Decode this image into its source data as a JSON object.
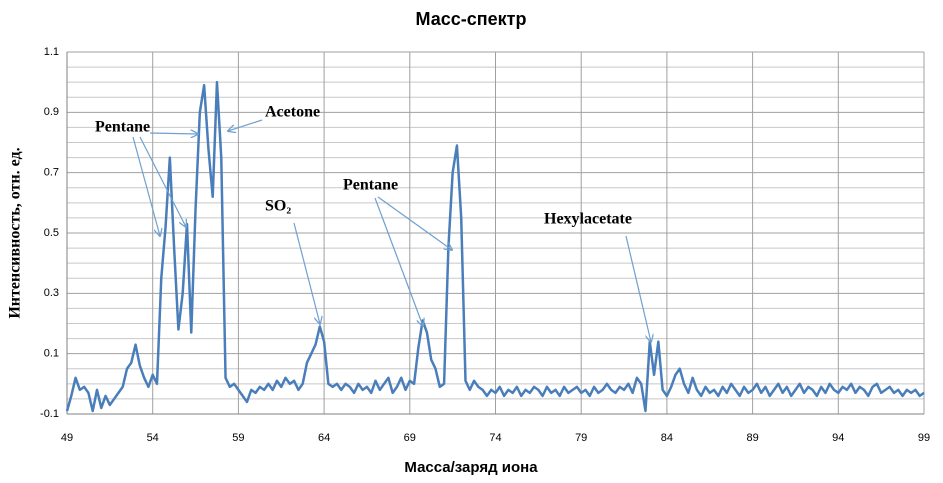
{
  "chart_data": {
    "type": "line",
    "title": "Масс-спектр",
    "x_label": "Масса/заряд иона",
    "y_label": "Интенсивность, отн. ед.",
    "color": "#4a7ebb",
    "grid": true,
    "xlim": [
      49,
      99
    ],
    "xticks": [
      49,
      54,
      59,
      64,
      69,
      74,
      79,
      84,
      89,
      94,
      99
    ],
    "ylim": [
      -0.1,
      1.1
    ],
    "yticks": [
      -0.1,
      0.1,
      0.3,
      0.5,
      0.7,
      0.9,
      1.1
    ],
    "y_minor_ticks": [
      -0.05,
      0,
      0.05,
      0.15,
      0.2,
      0.25,
      0.35,
      0.4,
      0.45,
      0.55,
      0.6,
      0.65,
      0.75,
      0.8,
      0.85,
      0.95,
      1,
      1.05
    ],
    "annotations": [
      {
        "text": "Pentane"
      },
      {
        "text": "Acetone"
      },
      {
        "text": "SO₂"
      },
      {
        "text": "Pentane"
      },
      {
        "text": "Hexylacetate"
      }
    ],
    "x": [
      49,
      49.25,
      49.5,
      49.75,
      50,
      50.25,
      50.5,
      50.75,
      51,
      51.25,
      51.5,
      51.75,
      52,
      52.25,
      52.5,
      52.75,
      53,
      53.25,
      53.5,
      53.75,
      54,
      54.25,
      54.5,
      54.75,
      55,
      55.25,
      55.5,
      55.75,
      56,
      56.25,
      56.5,
      56.75,
      57,
      57.25,
      57.5,
      57.75,
      58,
      58.25,
      58.5,
      58.75,
      59,
      59.25,
      59.5,
      59.75,
      60,
      60.25,
      60.5,
      60.75,
      61,
      61.25,
      61.5,
      61.75,
      62,
      62.25,
      62.5,
      62.75,
      63,
      63.25,
      63.5,
      63.75,
      64,
      64.25,
      64.5,
      64.75,
      65,
      65.25,
      65.5,
      65.75,
      66,
      66.25,
      66.5,
      66.75,
      67,
      67.25,
      67.5,
      67.75,
      68,
      68.25,
      68.5,
      68.75,
      69,
      69.25,
      69.5,
      69.75,
      70,
      70.25,
      70.5,
      70.75,
      71,
      71.25,
      71.5,
      71.75,
      72,
      72.25,
      72.5,
      72.75,
      73,
      73.25,
      73.5,
      73.75,
      74,
      74.25,
      74.5,
      74.75,
      75,
      75.25,
      75.5,
      75.75,
      76,
      76.25,
      76.5,
      76.75,
      77,
      77.25,
      77.5,
      77.75,
      78,
      78.25,
      78.5,
      78.75,
      79,
      79.25,
      79.5,
      79.75,
      80,
      80.25,
      80.5,
      80.75,
      81,
      81.25,
      81.5,
      81.75,
      82,
      82.25,
      82.5,
      82.75,
      83,
      83.25,
      83.5,
      83.75,
      84,
      84.25,
      84.5,
      84.75,
      85,
      85.25,
      85.5,
      85.75,
      86,
      86.25,
      86.5,
      86.75,
      87,
      87.25,
      87.5,
      87.75,
      88,
      88.25,
      88.5,
      88.75,
      89,
      89.25,
      89.5,
      89.75,
      90,
      90.25,
      90.5,
      90.75,
      91,
      91.25,
      91.5,
      91.75,
      92,
      92.25,
      92.5,
      92.75,
      93,
      93.25,
      93.5,
      93.75,
      94,
      94.25,
      94.5,
      94.75,
      95,
      95.25,
      95.5,
      95.75,
      96,
      96.25,
      96.5,
      96.75,
      97,
      97.25,
      97.5,
      97.75,
      98,
      98.25,
      98.5,
      98.75,
      99
    ],
    "values": [
      -0.09,
      -0.04,
      0.02,
      -0.02,
      -0.01,
      -0.03,
      -0.09,
      -0.02,
      -0.08,
      -0.04,
      -0.07,
      -0.05,
      -0.03,
      -0.01,
      0.05,
      0.07,
      0.13,
      0.06,
      0.02,
      -0.01,
      0.03,
      0,
      0.35,
      0.52,
      0.75,
      0.45,
      0.18,
      0.3,
      0.53,
      0.17,
      0.58,
      0.9,
      0.99,
      0.78,
      0.62,
      1,
      0.75,
      0.02,
      -0.01,
      0,
      -0.02,
      -0.04,
      -0.06,
      -0.02,
      -0.03,
      -0.01,
      -0.02,
      0,
      -0.02,
      0.01,
      -0.01,
      0.02,
      0,
      0.01,
      -0.02,
      0,
      0.07,
      0.1,
      0.13,
      0.19,
      0.14,
      0,
      -0.01,
      0,
      -0.02,
      0,
      -0.01,
      -0.03,
      0,
      -0.02,
      -0.01,
      -0.03,
      0.01,
      -0.02,
      0,
      0.02,
      -0.03,
      -0.01,
      0.02,
      -0.02,
      0.01,
      0,
      0.12,
      0.21,
      0.17,
      0.08,
      0.05,
      -0.01,
      0,
      0.45,
      0.7,
      0.79,
      0.55,
      0.01,
      -0.02,
      0.01,
      -0.01,
      -0.02,
      -0.04,
      -0.02,
      -0.03,
      -0.01,
      -0.04,
      -0.02,
      -0.03,
      -0.01,
      -0.04,
      -0.02,
      -0.03,
      -0.01,
      -0.02,
      -0.04,
      -0.01,
      -0.03,
      -0.02,
      -0.04,
      -0.01,
      -0.03,
      -0.02,
      -0.01,
      -0.03,
      -0.02,
      -0.04,
      -0.01,
      -0.03,
      -0.02,
      0,
      -0.02,
      -0.03,
      -0.01,
      -0.02,
      0,
      -0.03,
      0.02,
      0,
      -0.09,
      0.14,
      0.03,
      0.14,
      -0.02,
      -0.04,
      -0.01,
      0.03,
      0.05,
      0,
      -0.03,
      0.02,
      -0.02,
      -0.04,
      -0.01,
      -0.03,
      -0.02,
      -0.04,
      -0.01,
      -0.03,
      0,
      -0.02,
      -0.04,
      -0.01,
      -0.03,
      -0.02,
      0,
      -0.03,
      -0.01,
      -0.04,
      -0.02,
      0,
      -0.03,
      -0.01,
      -0.04,
      -0.02,
      0,
      -0.03,
      -0.01,
      -0.02,
      -0.04,
      -0.01,
      -0.03,
      0,
      -0.02,
      -0.03,
      -0.01,
      -0.02,
      0,
      -0.03,
      -0.01,
      -0.02,
      -0.04,
      -0.01,
      0,
      -0.03,
      -0.02,
      -0.01,
      -0.03,
      -0.02,
      -0.04,
      -0.02,
      -0.03,
      -0.02,
      -0.04,
      -0.03
    ]
  }
}
